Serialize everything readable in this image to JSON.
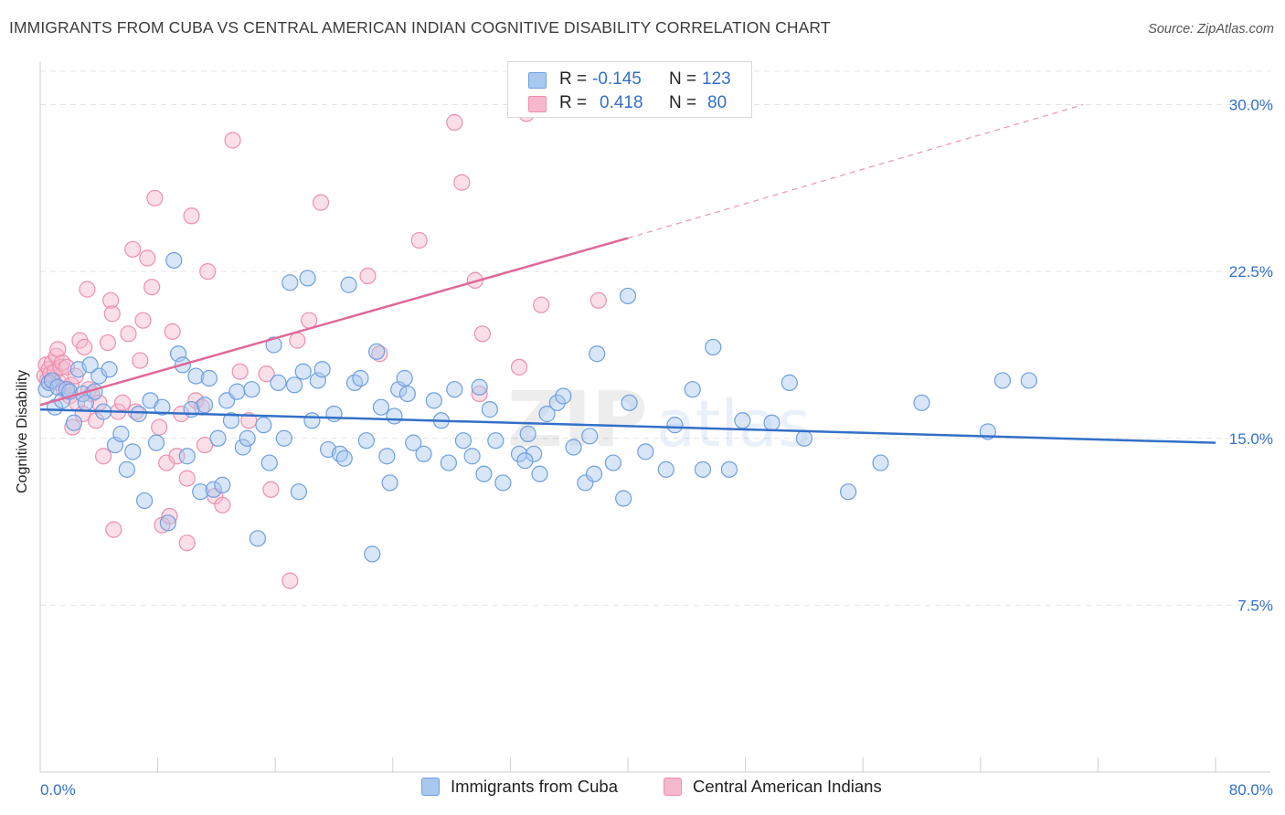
{
  "header": {
    "title": "IMMIGRANTS FROM CUBA VS CENTRAL AMERICAN INDIAN COGNITIVE DISABILITY CORRELATION CHART",
    "source": "Source: ZipAtlas.com"
  },
  "watermark": {
    "part1": "ZIP",
    "part2": "atlas"
  },
  "colors": {
    "blue_fill": "#a9c8f0",
    "blue_stroke": "#6f9fe0",
    "blue_line": "#3370c8",
    "pink_fill": "#f6b8cd",
    "pink_stroke": "#ec8fb0",
    "pink_line": "#e0689a",
    "grid": "#e3e3e3",
    "axis_text": "#3370c8"
  },
  "legend": {
    "series": [
      {
        "r_label": "R =",
        "r_value": "-0.145",
        "n_label": "N =",
        "n_value": "123"
      },
      {
        "r_label": "R =",
        "r_value": "0.418",
        "n_label": "N =",
        "n_value": "80"
      }
    ]
  },
  "chart_data": {
    "type": "scatter",
    "title": "IMMIGRANTS FROM CUBA VS CENTRAL AMERICAN INDIAN COGNITIVE DISABILITY CORRELATION CHART",
    "xlabel": "",
    "ylabel": "Cognitive Disability",
    "xlim": [
      0,
      80
    ],
    "ylim": [
      0,
      31.5
    ],
    "x_tick_labels": [
      "0.0%",
      "80.0%"
    ],
    "y_ticks": [
      7.5,
      15.0,
      22.5,
      30.0
    ],
    "y_tick_labels": [
      "7.5%",
      "15.0%",
      "22.5%",
      "30.0%"
    ],
    "grid": true,
    "legend_position": "bottom",
    "series": [
      {
        "name": "Immigrants from Cuba",
        "color": "#a9c8f0",
        "trend": {
          "x0": 0,
          "y0": 16.3,
          "x1": 80,
          "y1": 14.8,
          "dashed_from": null
        },
        "points": [
          [
            0.4,
            17.2
          ],
          [
            0.6,
            17.5
          ],
          [
            0.8,
            17.6
          ],
          [
            1.0,
            16.4
          ],
          [
            1.2,
            17.3
          ],
          [
            1.5,
            16.7
          ],
          [
            1.8,
            17.2
          ],
          [
            2.0,
            17.1
          ],
          [
            2.3,
            15.7
          ],
          [
            2.6,
            18.1
          ],
          [
            2.9,
            17.0
          ],
          [
            3.1,
            16.6
          ],
          [
            3.4,
            18.3
          ],
          [
            3.7,
            17.1
          ],
          [
            4.0,
            17.8
          ],
          [
            4.3,
            16.2
          ],
          [
            4.7,
            18.1
          ],
          [
            5.1,
            14.7
          ],
          [
            5.5,
            15.2
          ],
          [
            5.9,
            13.6
          ],
          [
            6.3,
            14.4
          ],
          [
            6.7,
            16.1
          ],
          [
            7.1,
            12.2
          ],
          [
            7.5,
            16.7
          ],
          [
            7.9,
            14.8
          ],
          [
            8.3,
            16.4
          ],
          [
            8.7,
            11.2
          ],
          [
            9.1,
            23.0
          ],
          [
            9.4,
            18.8
          ],
          [
            9.7,
            18.3
          ],
          [
            10.0,
            14.2
          ],
          [
            10.3,
            16.3
          ],
          [
            10.6,
            17.8
          ],
          [
            10.9,
            12.6
          ],
          [
            11.2,
            16.5
          ],
          [
            11.5,
            17.7
          ],
          [
            11.8,
            12.7
          ],
          [
            12.1,
            15.0
          ],
          [
            12.4,
            12.9
          ],
          [
            12.7,
            16.7
          ],
          [
            13.0,
            15.8
          ],
          [
            13.4,
            17.1
          ],
          [
            13.8,
            14.6
          ],
          [
            14.1,
            15.0
          ],
          [
            14.4,
            17.2
          ],
          [
            14.8,
            10.5
          ],
          [
            15.2,
            15.6
          ],
          [
            15.6,
            13.9
          ],
          [
            15.9,
            19.2
          ],
          [
            16.2,
            17.5
          ],
          [
            16.6,
            15.0
          ],
          [
            17.0,
            22.0
          ],
          [
            17.3,
            17.4
          ],
          [
            17.6,
            12.6
          ],
          [
            17.9,
            18.0
          ],
          [
            18.2,
            22.2
          ],
          [
            18.5,
            15.8
          ],
          [
            18.9,
            17.6
          ],
          [
            19.2,
            18.1
          ],
          [
            19.6,
            14.5
          ],
          [
            20.0,
            16.1
          ],
          [
            20.4,
            14.3
          ],
          [
            20.7,
            14.1
          ],
          [
            21.0,
            21.9
          ],
          [
            21.4,
            17.5
          ],
          [
            21.8,
            17.7
          ],
          [
            22.2,
            14.9
          ],
          [
            22.6,
            9.8
          ],
          [
            22.9,
            18.9
          ],
          [
            23.2,
            16.4
          ],
          [
            23.6,
            14.2
          ],
          [
            23.8,
            13.0
          ],
          [
            24.1,
            16.0
          ],
          [
            24.4,
            17.2
          ],
          [
            24.8,
            17.7
          ],
          [
            25.4,
            14.8
          ],
          [
            26.1,
            14.3
          ],
          [
            26.8,
            16.7
          ],
          [
            27.3,
            15.8
          ],
          [
            27.8,
            13.9
          ],
          [
            28.2,
            17.2
          ],
          [
            28.8,
            14.9
          ],
          [
            29.4,
            14.2
          ],
          [
            29.9,
            17.3
          ],
          [
            30.2,
            13.4
          ],
          [
            30.6,
            16.3
          ],
          [
            31.0,
            14.9
          ],
          [
            31.5,
            13.0
          ],
          [
            32.6,
            14.3
          ],
          [
            33.2,
            15.2
          ],
          [
            33.6,
            14.3
          ],
          [
            34.0,
            13.4
          ],
          [
            34.5,
            16.1
          ],
          [
            35.2,
            16.6
          ],
          [
            35.6,
            16.9
          ],
          [
            36.3,
            14.6
          ],
          [
            37.1,
            13.0
          ],
          [
            37.4,
            15.1
          ],
          [
            37.7,
            13.4
          ],
          [
            39.0,
            13.9
          ],
          [
            39.7,
            12.3
          ],
          [
            40.1,
            16.6
          ],
          [
            41.2,
            14.4
          ],
          [
            42.6,
            13.6
          ],
          [
            43.2,
            15.6
          ],
          [
            44.4,
            17.2
          ],
          [
            45.1,
            13.6
          ],
          [
            45.8,
            19.1
          ],
          [
            46.9,
            13.6
          ],
          [
            47.8,
            15.8
          ],
          [
            49.8,
            15.7
          ],
          [
            51.0,
            17.5
          ],
          [
            52.0,
            15.0
          ],
          [
            55.0,
            12.6
          ],
          [
            57.2,
            13.9
          ],
          [
            60.0,
            16.6
          ],
          [
            64.5,
            15.3
          ],
          [
            65.5,
            17.6
          ],
          [
            67.3,
            17.6
          ],
          [
            40.0,
            21.4
          ],
          [
            37.9,
            18.8
          ],
          [
            33.0,
            14.0
          ],
          [
            25.0,
            17.0
          ]
        ]
      },
      {
        "name": "Central American Indians",
        "color": "#f6b8cd",
        "trend": {
          "x0": 0,
          "y0": 16.5,
          "x1": 40,
          "y1": 24.0,
          "dashed_to_x": 71,
          "dashed_to_y": 30.0
        },
        "points": [
          [
            0.3,
            17.8
          ],
          [
            0.4,
            18.3
          ],
          [
            0.5,
            17.6
          ],
          [
            0.6,
            18.1
          ],
          [
            0.7,
            17.9
          ],
          [
            0.8,
            18.4
          ],
          [
            0.9,
            17.6
          ],
          [
            1.0,
            18.0
          ],
          [
            1.1,
            18.7
          ],
          [
            1.2,
            19.0
          ],
          [
            1.3,
            17.5
          ],
          [
            1.4,
            18.2
          ],
          [
            1.5,
            18.4
          ],
          [
            1.6,
            17.2
          ],
          [
            1.8,
            18.2
          ],
          [
            2.0,
            16.9
          ],
          [
            2.1,
            17.4
          ],
          [
            2.2,
            15.5
          ],
          [
            2.4,
            17.8
          ],
          [
            2.5,
            16.6
          ],
          [
            2.7,
            19.4
          ],
          [
            2.9,
            16.1
          ],
          [
            3.0,
            19.1
          ],
          [
            3.2,
            21.7
          ],
          [
            3.3,
            17.2
          ],
          [
            3.5,
            17.0
          ],
          [
            3.8,
            15.8
          ],
          [
            4.0,
            16.6
          ],
          [
            4.3,
            14.2
          ],
          [
            4.6,
            19.3
          ],
          [
            4.8,
            21.2
          ],
          [
            4.9,
            20.6
          ],
          [
            5.0,
            10.9
          ],
          [
            5.3,
            16.2
          ],
          [
            5.6,
            16.6
          ],
          [
            6.0,
            19.7
          ],
          [
            6.3,
            23.5
          ],
          [
            6.5,
            16.2
          ],
          [
            6.8,
            18.5
          ],
          [
            7.0,
            20.3
          ],
          [
            7.3,
            23.1
          ],
          [
            7.6,
            21.8
          ],
          [
            7.8,
            25.8
          ],
          [
            8.1,
            15.5
          ],
          [
            8.3,
            11.1
          ],
          [
            8.6,
            13.9
          ],
          [
            8.8,
            11.5
          ],
          [
            9.0,
            19.8
          ],
          [
            9.3,
            14.2
          ],
          [
            9.6,
            16.1
          ],
          [
            10.0,
            13.2
          ],
          [
            10.3,
            25.0
          ],
          [
            10.6,
            16.7
          ],
          [
            11.0,
            16.4
          ],
          [
            11.4,
            22.5
          ],
          [
            11.9,
            12.4
          ],
          [
            12.4,
            12.0
          ],
          [
            13.1,
            28.4
          ],
          [
            13.6,
            18.0
          ],
          [
            14.2,
            15.8
          ],
          [
            15.4,
            17.9
          ],
          [
            15.7,
            12.7
          ],
          [
            17.0,
            8.6
          ],
          [
            17.5,
            19.4
          ],
          [
            18.3,
            20.3
          ],
          [
            19.1,
            25.6
          ],
          [
            22.3,
            22.3
          ],
          [
            23.1,
            18.8
          ],
          [
            25.8,
            23.9
          ],
          [
            28.2,
            29.2
          ],
          [
            28.7,
            26.5
          ],
          [
            29.9,
            17.0
          ],
          [
            30.1,
            19.7
          ],
          [
            29.6,
            22.1
          ],
          [
            32.6,
            18.2
          ],
          [
            33.1,
            29.6
          ],
          [
            34.1,
            21.0
          ],
          [
            38.0,
            21.2
          ],
          [
            11.2,
            14.7
          ],
          [
            10.0,
            10.3
          ]
        ]
      }
    ]
  },
  "bottom_legend": {
    "items": [
      {
        "label": "Immigrants from Cuba"
      },
      {
        "label": "Central American Indians"
      }
    ]
  }
}
